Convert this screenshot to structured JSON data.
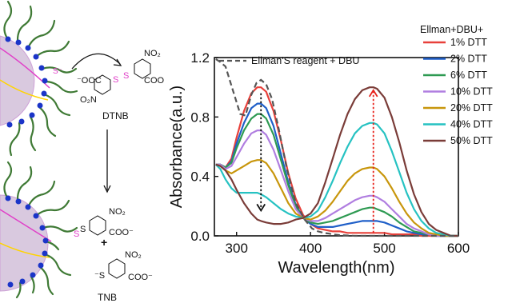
{
  "scheme": {
    "reagent_label": "DTNB",
    "product_label": "TNB",
    "plus_sign": "+",
    "texts": {
      "thiolate": "S⁻",
      "ooc": "⁻OOC",
      "s1": "S",
      "s2": "S",
      "no2_top": "NO₂",
      "o2n": "O₂N",
      "coo_top": "COO⁻",
      "s_link": "S",
      "s_link2": "S",
      "no2_mid": "NO₂",
      "coo_mid": "COO⁻",
      "s_tnb": "⁻S",
      "no2_tnb": "NO₂",
      "coo_tnb": "COO⁻"
    }
  },
  "chart_data": {
    "type": "line",
    "xlabel": "Wavelength(nm)",
    "ylabel": "Absorbance(a.u.)",
    "xlim": [
      270,
      600
    ],
    "ylim": [
      0,
      1.2
    ],
    "xticks": [
      300,
      400,
      500,
      600
    ],
    "yticks": [
      0.0,
      0.4,
      0.8,
      1.2
    ],
    "legend_title": "Ellman+DBU+",
    "legend_position": "right",
    "annotation": "Ellman'S reagent + DBU",
    "reference_series": {
      "name": "Ellman'S reagent + DBU",
      "style": "dashed",
      "color": "#555555",
      "x": [
        272,
        278,
        285,
        295,
        305,
        312,
        320,
        327,
        333,
        340,
        348,
        357,
        368,
        380,
        392,
        402,
        410,
        418,
        425,
        430,
        440,
        460,
        480,
        500,
        540,
        580,
        600
      ],
      "y": [
        1.19,
        1.17,
        1.14,
        0.98,
        0.82,
        0.81,
        0.95,
        1.03,
        1.05,
        1.02,
        0.92,
        0.72,
        0.45,
        0.22,
        0.11,
        0.05,
        0.03,
        0.02,
        0.015,
        0.01,
        0.005,
        0.0,
        0.0,
        0.0,
        0.0,
        0.0,
        0.0
      ]
    },
    "x": [
      272,
      278,
      285,
      293,
      300,
      310,
      320,
      328,
      333,
      340,
      350,
      360,
      370,
      380,
      390,
      400,
      410,
      420,
      430,
      440,
      450,
      460,
      470,
      480,
      485,
      490,
      500,
      510,
      520,
      530,
      540,
      550,
      560,
      570,
      580,
      590,
      600
    ],
    "series": [
      {
        "name": "1% DTT",
        "color": "#e8403a",
        "y": [
          0.48,
          0.48,
          0.46,
          0.52,
          0.66,
          0.84,
          0.96,
          1.0,
          1.0,
          0.97,
          0.84,
          0.64,
          0.42,
          0.25,
          0.14,
          0.08,
          0.05,
          0.04,
          0.03,
          0.03,
          0.02,
          0.02,
          0.02,
          0.02,
          0.02,
          0.02,
          0.02,
          0.01,
          0.01,
          0.01,
          0.01,
          0.0,
          0.0,
          0.0,
          0.0,
          0.0,
          0.0
        ]
      },
      {
        "name": "2% DTT",
        "color": "#1f5fc8",
        "y": [
          0.48,
          0.48,
          0.46,
          0.5,
          0.62,
          0.76,
          0.86,
          0.89,
          0.89,
          0.86,
          0.74,
          0.55,
          0.36,
          0.21,
          0.12,
          0.08,
          0.06,
          0.06,
          0.06,
          0.07,
          0.08,
          0.09,
          0.1,
          0.1,
          0.1,
          0.1,
          0.09,
          0.07,
          0.05,
          0.03,
          0.02,
          0.01,
          0.01,
          0.0,
          0.0,
          0.0,
          0.0
        ]
      },
      {
        "name": "6% DTT",
        "color": "#2e9a52",
        "y": [
          0.48,
          0.48,
          0.46,
          0.49,
          0.59,
          0.71,
          0.79,
          0.82,
          0.82,
          0.79,
          0.68,
          0.51,
          0.34,
          0.2,
          0.12,
          0.09,
          0.08,
          0.09,
          0.1,
          0.12,
          0.14,
          0.16,
          0.18,
          0.19,
          0.19,
          0.18,
          0.16,
          0.13,
          0.09,
          0.06,
          0.03,
          0.02,
          0.01,
          0.0,
          0.0,
          0.0,
          0.0
        ]
      },
      {
        "name": "10% DTT",
        "color": "#b07ee0",
        "y": [
          0.48,
          0.48,
          0.45,
          0.47,
          0.53,
          0.62,
          0.69,
          0.71,
          0.71,
          0.68,
          0.58,
          0.44,
          0.3,
          0.18,
          0.12,
          0.1,
          0.1,
          0.12,
          0.15,
          0.18,
          0.21,
          0.24,
          0.26,
          0.27,
          0.27,
          0.26,
          0.23,
          0.18,
          0.13,
          0.08,
          0.05,
          0.03,
          0.01,
          0.0,
          0.0,
          0.0,
          0.0
        ]
      },
      {
        "name": "20% DTT",
        "color": "#c8960c",
        "y": [
          0.48,
          0.47,
          0.44,
          0.42,
          0.44,
          0.47,
          0.5,
          0.51,
          0.51,
          0.49,
          0.42,
          0.32,
          0.22,
          0.15,
          0.12,
          0.11,
          0.13,
          0.17,
          0.23,
          0.3,
          0.37,
          0.42,
          0.45,
          0.46,
          0.46,
          0.45,
          0.4,
          0.32,
          0.23,
          0.15,
          0.09,
          0.05,
          0.02,
          0.01,
          0.0,
          0.0,
          0.0
        ]
      },
      {
        "name": "40% DTT",
        "color": "#26c2c2",
        "y": [
          0.48,
          0.45,
          0.38,
          0.32,
          0.29,
          0.29,
          0.29,
          0.29,
          0.28,
          0.26,
          0.22,
          0.18,
          0.15,
          0.13,
          0.12,
          0.13,
          0.17,
          0.26,
          0.37,
          0.49,
          0.6,
          0.69,
          0.74,
          0.76,
          0.76,
          0.75,
          0.69,
          0.57,
          0.43,
          0.29,
          0.18,
          0.1,
          0.05,
          0.02,
          0.01,
          0.0,
          0.0
        ]
      },
      {
        "name": "50% DTT",
        "color": "#7a3c38",
        "y": [
          0.48,
          0.47,
          0.44,
          0.38,
          0.31,
          0.22,
          0.15,
          0.11,
          0.1,
          0.09,
          0.08,
          0.08,
          0.09,
          0.11,
          0.12,
          0.15,
          0.22,
          0.36,
          0.52,
          0.68,
          0.82,
          0.92,
          0.98,
          1.0,
          1.0,
          0.99,
          0.93,
          0.8,
          0.63,
          0.44,
          0.28,
          0.16,
          0.08,
          0.04,
          0.02,
          0.0,
          0.0
        ]
      }
    ],
    "arrows": [
      {
        "name": "decrease-arrow",
        "color": "#111111",
        "x": 333,
        "y_from": 0.96,
        "y_to": 0.17
      },
      {
        "name": "increase-arrow",
        "color": "#e8231c",
        "x": 485,
        "y_from": 0.02,
        "y_to": 0.98
      }
    ]
  }
}
